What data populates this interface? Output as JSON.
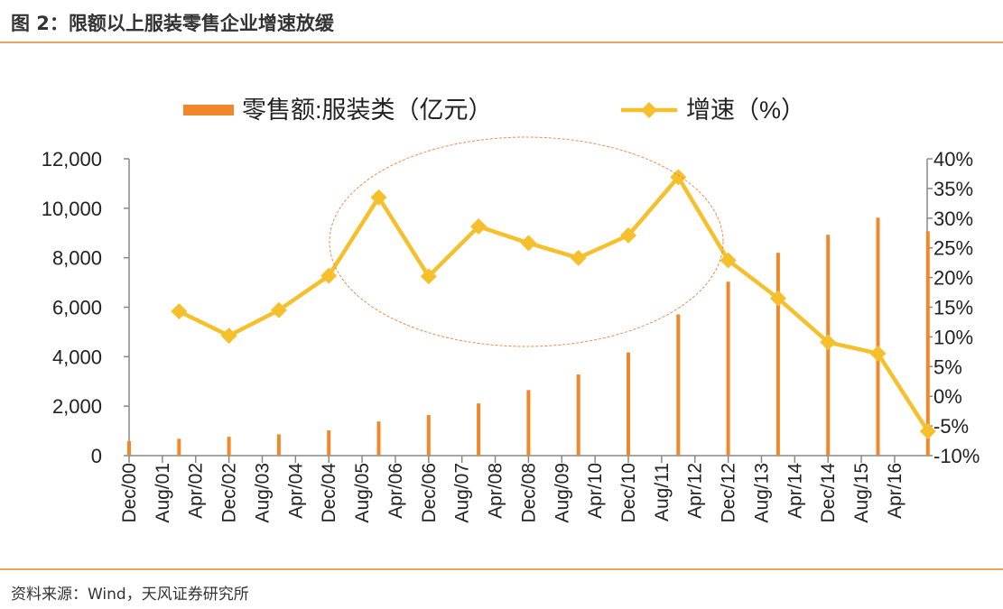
{
  "figure_title": "图 2：限额以上服装零售企业增速放缓",
  "source_note": "资料来源：Wind，天风证券研究所",
  "colors": {
    "bar": "#f0882a",
    "line": "#f6c02c",
    "rule": "#f0a35f",
    "ellipse": "#f08a4b"
  },
  "chart_data": {
    "type": "bar+line",
    "legend_position": "top",
    "grid": false,
    "series": [
      {
        "name": "零售额:服装类（亿元）",
        "type": "bar",
        "axis": "left",
        "x": [
          "Dec/00",
          "Dec/01",
          "Dec/02",
          "Dec/03",
          "Dec/04",
          "Dec/05",
          "Dec/06",
          "Dec/07",
          "Dec/08",
          "Dec/09",
          "Dec/10",
          "Dec/11",
          "Dec/12",
          "Dec/13",
          "Dec/14",
          "Dec/15",
          "Dec/16"
        ],
        "values": [
          580,
          680,
          760,
          860,
          1020,
          1380,
          1640,
          2110,
          2650,
          3280,
          4170,
          5710,
          7030,
          8200,
          8930,
          9620,
          9070
        ]
      },
      {
        "name": "增速（%）",
        "type": "line",
        "axis": "right",
        "x": [
          "Dec/01",
          "Dec/02",
          "Dec/03",
          "Dec/04",
          "Dec/05",
          "Dec/06",
          "Dec/07",
          "Dec/08",
          "Dec/09",
          "Dec/10",
          "Dec/11",
          "Dec/12",
          "Dec/13",
          "Dec/14",
          "Dec/15",
          "Dec/16"
        ],
        "values": [
          14.3,
          10.2,
          14.5,
          20.3,
          33.5,
          20.2,
          28.6,
          25.8,
          23.3,
          27.1,
          36.9,
          22.9,
          16.5,
          9.1,
          7.2,
          -5.9
        ]
      }
    ],
    "y_left": {
      "range": [
        0,
        12000
      ],
      "ticks": [
        "0",
        "2,000",
        "4,000",
        "6,000",
        "8,000",
        "10,000",
        "12,000"
      ]
    },
    "y_right": {
      "range": [
        -10,
        40
      ],
      "ticks": [
        "-10%",
        "-5%",
        "0%",
        "5%",
        "10%",
        "15%",
        "20%",
        "25%",
        "30%",
        "35%",
        "40%"
      ]
    },
    "x_tick_labels": [
      "Dec/00",
      "Aug/01",
      "Apr/02",
      "Dec/02",
      "Aug/03",
      "Apr/04",
      "Dec/04",
      "Aug/05",
      "Apr/06",
      "Dec/06",
      "Aug/07",
      "Apr/08",
      "Dec/08",
      "Aug/09",
      "Apr/10",
      "Dec/10",
      "Aug/11",
      "Apr/12",
      "Dec/12",
      "Aug/13",
      "Apr/14",
      "Dec/14",
      "Aug/15",
      "Apr/16"
    ],
    "annotation": {
      "shape": "ellipse",
      "label": "",
      "covers": "Dec/04 – Dec/11"
    }
  }
}
